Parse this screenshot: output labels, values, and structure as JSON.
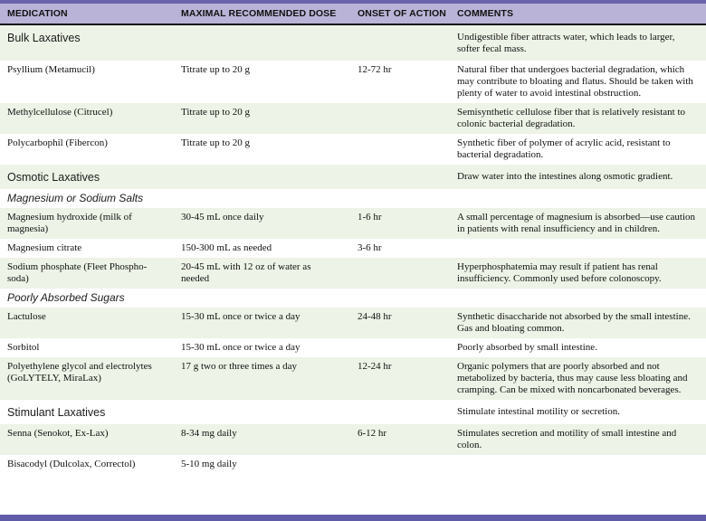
{
  "table": {
    "columns": [
      {
        "key": "medication",
        "label": "MEDICATION"
      },
      {
        "key": "dose",
        "label": "MAXIMAL RECOMMENDED DOSE"
      },
      {
        "key": "onset",
        "label": "ONSET OF ACTION"
      },
      {
        "key": "comments",
        "label": "COMMENTS"
      }
    ],
    "rows": [
      {
        "type": "section",
        "medication": "Bulk Laxatives",
        "dose": "",
        "onset": "",
        "comments": "Undigestible fiber attracts water, which leads to larger, softer fecal mass."
      },
      {
        "type": "data",
        "medication": "Psyllium (Metamucil)",
        "dose": "Titrate up to 20 g",
        "onset": "12-72 hr",
        "comments": "Natural fiber that undergoes bacterial degradation, which may contribute to bloating and flatus. Should be taken with plenty of water to avoid intestinal obstruction."
      },
      {
        "type": "data",
        "medication": "Methylcellulose (Citrucel)",
        "dose": "Titrate up to 20 g",
        "onset": "",
        "comments": "Semisynthetic cellulose fiber that is relatively resistant to colonic bacterial degradation."
      },
      {
        "type": "data",
        "medication": "Polycarbophil (Fibercon)",
        "dose": "Titrate up to 20 g",
        "onset": "",
        "comments": "Synthetic fiber of polymer of acrylic acid, resistant to bacterial degradation."
      },
      {
        "type": "section",
        "medication": "Osmotic Laxatives",
        "dose": "",
        "onset": "",
        "comments": "Draw water into the intestines along osmotic gradient."
      },
      {
        "type": "subsection",
        "medication": "Magnesium or Sodium Salts",
        "dose": "",
        "onset": "",
        "comments": ""
      },
      {
        "type": "data",
        "medication": "Magnesium hydroxide (milk of magnesia)",
        "dose": "30-45 mL once daily",
        "onset": "1-6 hr",
        "comments": "A small percentage of magnesium is absorbed—use caution in patients with renal insufficiency and in children."
      },
      {
        "type": "data",
        "medication": "Magnesium citrate",
        "dose": "150-300 mL as needed",
        "onset": "3-6 hr",
        "comments": ""
      },
      {
        "type": "data",
        "medication": "Sodium phosphate (Fleet Phospho-soda)",
        "dose": "20-45 mL with 12 oz of water as needed",
        "onset": "",
        "comments": "Hyperphosphatemia may result if patient has renal insufficiency. Commonly used before colonoscopy."
      },
      {
        "type": "subsection",
        "medication": "Poorly Absorbed Sugars",
        "dose": "",
        "onset": "",
        "comments": ""
      },
      {
        "type": "data",
        "medication": "Lactulose",
        "dose": "15-30 mL once or twice a day",
        "onset": "24-48 hr",
        "comments": "Synthetic disaccharide not absorbed by the small intestine. Gas and bloating common."
      },
      {
        "type": "data",
        "medication": "Sorbitol",
        "dose": "15-30 mL once or twice a day",
        "onset": "",
        "comments": "Poorly absorbed by small intestine."
      },
      {
        "type": "data",
        "medication": "Polyethylene glycol and electrolytes (GoLYTELY, MiraLax)",
        "dose": "17 g two or three times a day",
        "onset": "12-24 hr",
        "comments": "Organic polymers that are poorly absorbed and not metabolized by bacteria, thus may cause less bloating and cramping. Can be mixed with noncarbonated beverages."
      },
      {
        "type": "section",
        "medication": "Stimulant Laxatives",
        "dose": "",
        "onset": "",
        "comments": "Stimulate intestinal motility or secretion."
      },
      {
        "type": "data",
        "medication": "Senna (Senokot, Ex-Lax)",
        "dose": "8-34 mg daily",
        "onset": "6-12 hr",
        "comments": "Stimulates secretion and motility of small intestine and colon."
      },
      {
        "type": "data",
        "medication": "Bisacodyl (Dulcolax, Correctol)",
        "dose": "5-10 mg daily",
        "onset": "",
        "comments": ""
      }
    ]
  },
  "colors": {
    "top_border": "#6a64ab",
    "header_bg": "#b9b4d7",
    "header_rule": "#161616",
    "row_green": "#edf3e6",
    "row_white": "#ffffff",
    "bottom_bar": "#605ba7"
  }
}
